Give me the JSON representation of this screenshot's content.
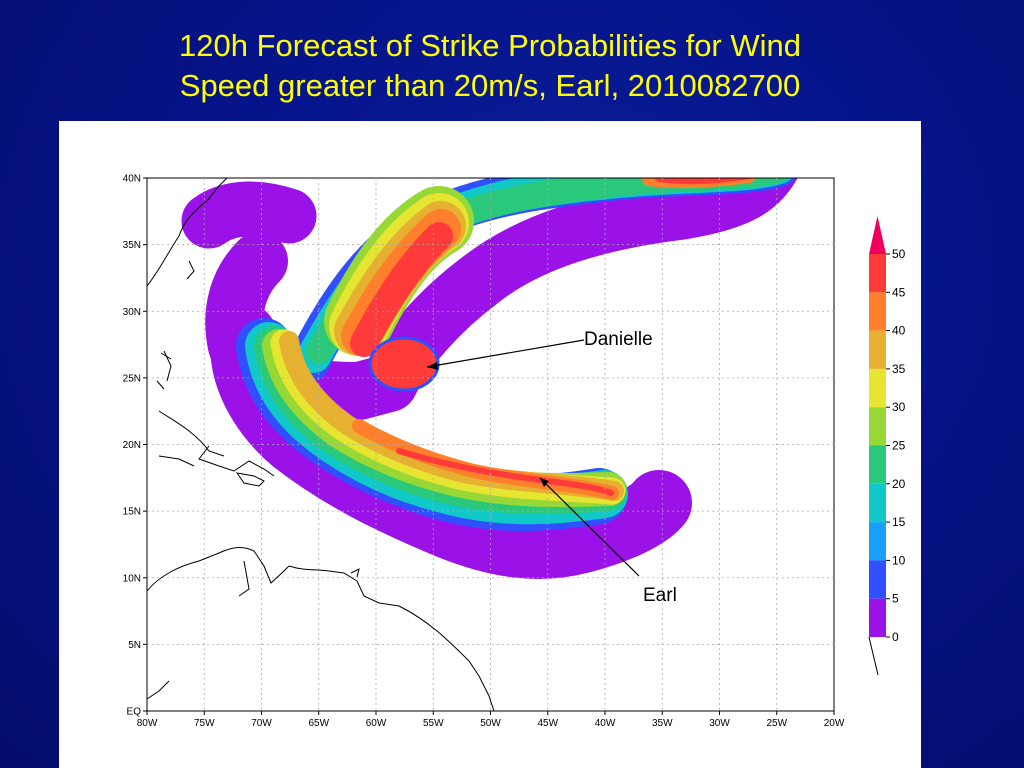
{
  "title": {
    "line1": "120h Forecast of Strike Probabilities for Wind",
    "line2": "Speed greater than 20m/s, Earl, 2010082700"
  },
  "map": {
    "lon_ticks": [
      "80W",
      "75W",
      "70W",
      "65W",
      "60W",
      "55W",
      "50W",
      "45W",
      "40W",
      "35W",
      "30W",
      "25W",
      "20W"
    ],
    "lat_ticks": [
      "40N",
      "35N",
      "30N",
      "25N",
      "20N",
      "15N",
      "10N",
      "5N",
      "EQ"
    ],
    "lon_range": [
      -80,
      -20
    ],
    "lat_range": [
      0,
      40
    ],
    "grid": true,
    "annotations": [
      {
        "text": "Danielle",
        "lon": -57.5,
        "lat": 26.0
      },
      {
        "text": "Earl",
        "lon": -46.0,
        "lat": 17.5
      }
    ]
  },
  "colorbar": {
    "labels": [
      "50",
      "45",
      "40",
      "35",
      "30",
      "25",
      "20",
      "15",
      "10",
      "5",
      "0"
    ],
    "colors": [
      "#f0005a",
      "#ff3a3a",
      "#ff7f2a",
      "#e6b030",
      "#e6e632",
      "#98d836",
      "#2ac87a",
      "#10c8c8",
      "#18a0ff",
      "#3050ff",
      "#9a12e8"
    ]
  }
}
